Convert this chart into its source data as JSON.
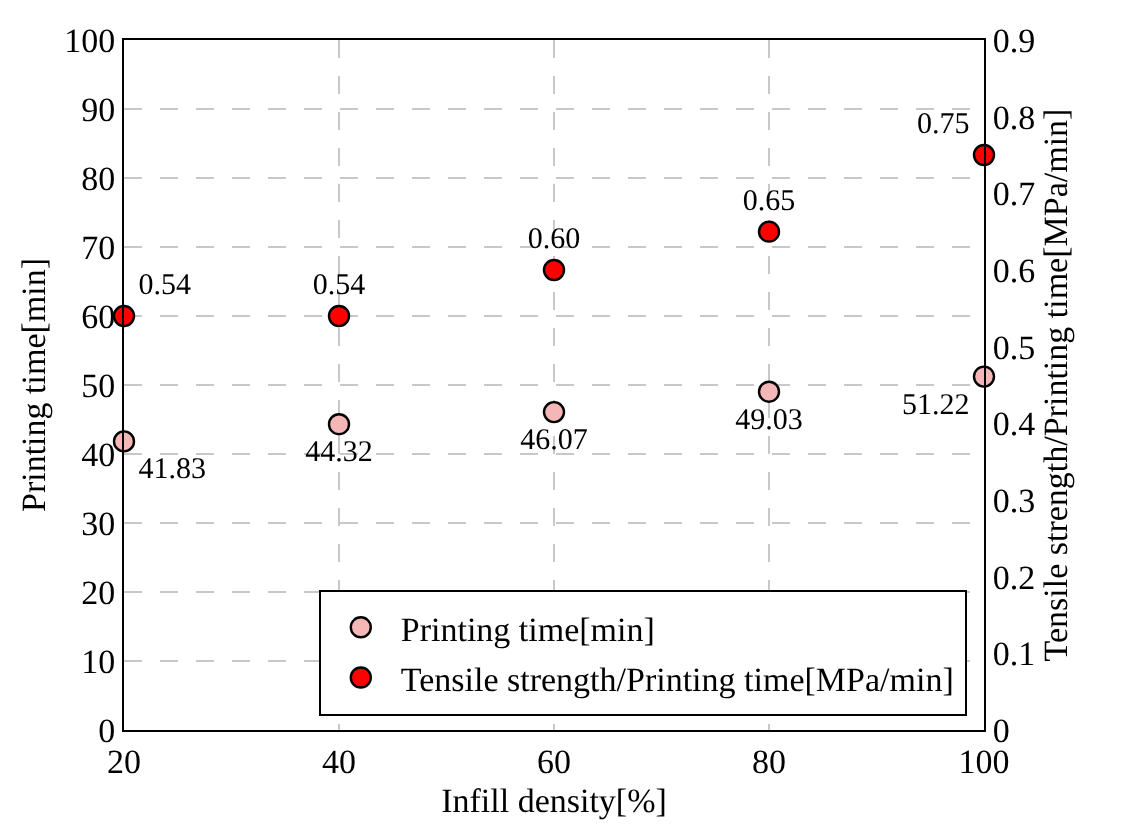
{
  "chart_data": {
    "type": "scatter",
    "xlabel": "Infill density[%]",
    "ylabel": "Printing time[min]",
    "y2label": "Tensile strength/Printing time[MPa/min]",
    "x": [
      20,
      40,
      60,
      80,
      100
    ],
    "series": [
      {
        "name": "Printing time[min]",
        "color": "#f4b6b6",
        "values": [
          41.83,
          44.32,
          46.07,
          49.03,
          51.22
        ],
        "value_labels": [
          "41.83",
          "44.32",
          "46.07",
          "49.03",
          "51.22"
        ]
      },
      {
        "name": "Tensile strength/Printing time[MPa/min]",
        "color": "#ff0000",
        "axis": "y2",
        "values": [
          0.54,
          0.54,
          0.6,
          0.65,
          0.75
        ],
        "value_labels": [
          "0.54",
          "0.54",
          "0.60",
          "0.65",
          "0.75"
        ]
      }
    ],
    "xlim": [
      20,
      100
    ],
    "xticks": [
      20,
      40,
      60,
      80,
      100
    ],
    "ylim": [
      0,
      100
    ],
    "yticks": [
      0,
      10,
      20,
      30,
      40,
      50,
      60,
      70,
      80,
      90,
      100
    ],
    "y2lim": [
      0,
      0.9
    ],
    "y2ticks": [
      0,
      0.1,
      0.2,
      0.3,
      0.4,
      0.5,
      0.6,
      0.7,
      0.8,
      0.9
    ],
    "grid": true,
    "legend": "bottom right",
    "marker": "circle"
  }
}
